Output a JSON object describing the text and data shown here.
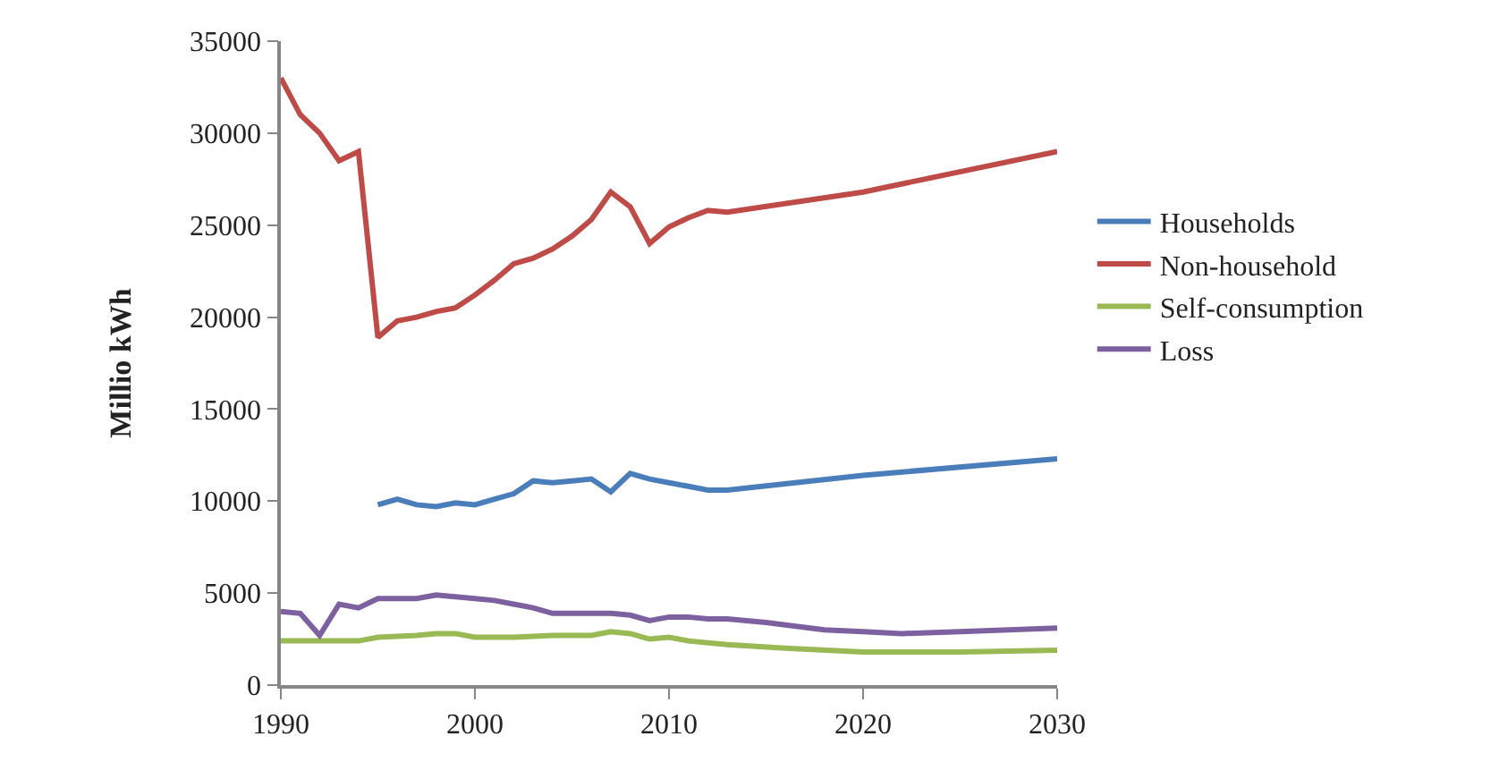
{
  "chart_data": {
    "type": "line",
    "ylabel": "Millio kWh",
    "xlim": [
      1990,
      2030
    ],
    "xticks": [
      1990,
      2000,
      2010,
      2020,
      2030
    ],
    "ylim": [
      0,
      35000
    ],
    "yticks": [
      0,
      5000,
      10000,
      15000,
      20000,
      25000,
      30000,
      35000
    ],
    "legend": "right",
    "marker": "none",
    "line_style": "solid",
    "series": [
      {
        "name": "Households",
        "color": "#4a7ebb",
        "x": [
          1995,
          1996,
          1997,
          1998,
          1999,
          2000,
          2001,
          2002,
          2003,
          2004,
          2005,
          2006,
          2007,
          2008,
          2009,
          2010,
          2011,
          2012,
          2013,
          2020,
          2030
        ],
        "values": [
          9800,
          10100,
          9800,
          9700,
          9900,
          9800,
          10100,
          10400,
          11100,
          11000,
          11100,
          11200,
          10500,
          11500,
          11200,
          11000,
          10800,
          10600,
          10600,
          11400,
          12300
        ]
      },
      {
        "name": "Non-household",
        "color": "#be4b48",
        "x": [
          1990,
          1991,
          1992,
          1993,
          1994,
          1995,
          1996,
          1997,
          1998,
          1999,
          2000,
          2001,
          2002,
          2003,
          2004,
          2005,
          2006,
          2007,
          2008,
          2009,
          2010,
          2011,
          2012,
          2013,
          2020,
          2030
        ],
        "values": [
          33000,
          31000,
          30000,
          28500,
          29000,
          18900,
          19800,
          20000,
          20300,
          20500,
          21200,
          22000,
          22900,
          23200,
          23700,
          24400,
          25300,
          26800,
          26000,
          24000,
          24900,
          25400,
          25800,
          25700,
          26800,
          29000
        ]
      },
      {
        "name": "Self-consumption",
        "color": "#98b954",
        "x": [
          1990,
          1992,
          1994,
          1995,
          1997,
          1998,
          1999,
          2000,
          2002,
          2004,
          2006,
          2007,
          2008,
          2009,
          2010,
          2011,
          2013,
          2016,
          2020,
          2022,
          2025,
          2030
        ],
        "values": [
          2400,
          2400,
          2400,
          2600,
          2700,
          2800,
          2800,
          2600,
          2600,
          2700,
          2700,
          2900,
          2800,
          2500,
          2600,
          2400,
          2200,
          2000,
          1800,
          1800,
          1800,
          1900
        ]
      },
      {
        "name": "Loss",
        "color": "#7d60a0",
        "x": [
          1990,
          1991,
          1992,
          1993,
          1994,
          1995,
          1996,
          1997,
          1998,
          1999,
          2000,
          2001,
          2002,
          2003,
          2004,
          2005,
          2006,
          2007,
          2008,
          2009,
          2010,
          2011,
          2012,
          2013,
          2015,
          2018,
          2020,
          2022,
          2025,
          2030
        ],
        "values": [
          4000,
          3900,
          2700,
          4400,
          4200,
          4700,
          4700,
          4700,
          4900,
          4800,
          4700,
          4600,
          4400,
          4200,
          3900,
          3900,
          3900,
          3900,
          3800,
          3500,
          3700,
          3700,
          3600,
          3600,
          3400,
          3000,
          2900,
          2800,
          2900,
          3100
        ]
      }
    ]
  }
}
